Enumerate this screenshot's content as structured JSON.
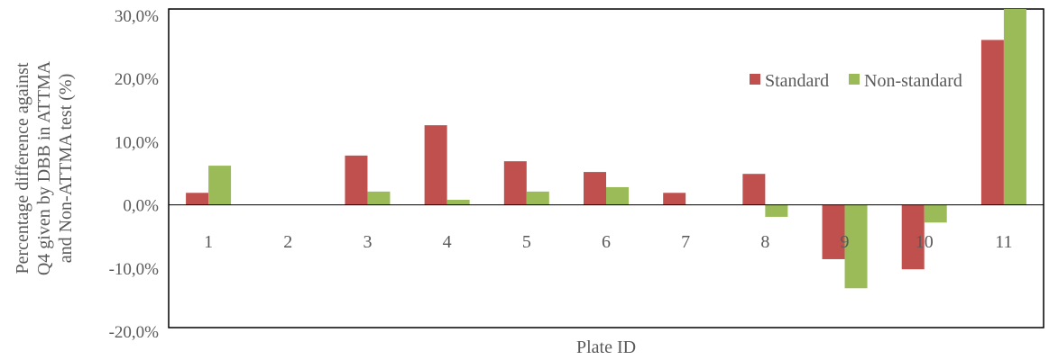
{
  "chart_data": {
    "type": "bar",
    "title": "",
    "xlabel": "Plate ID",
    "ylabel_lines": [
      "Percentage difference against",
      "Q4 given by DBB in ATTMA",
      "and Non-ATTMA test (%)"
    ],
    "categories": [
      "1",
      "2",
      "3",
      "4",
      "5",
      "6",
      "7",
      "8",
      "9",
      "10",
      "11"
    ],
    "ylim": [
      -20,
      30
    ],
    "yticks": [
      -20,
      -10,
      0,
      10,
      20,
      30
    ],
    "ytick_labels": [
      "-20,0%",
      "-10,0%",
      "0,0%",
      "10,0%",
      "20,0%",
      "30,0%"
    ],
    "grid": false,
    "legend_position": "right",
    "series": [
      {
        "name": "Standard",
        "color": "#c0504d",
        "values": [
          1.9,
          0,
          7.8,
          12.6,
          6.9,
          5.2,
          1.9,
          4.9,
          -8.6,
          -10.2,
          26.1
        ]
      },
      {
        "name": "Non-standard",
        "color": "#9bbb59",
        "values": [
          6.2,
          0,
          2.1,
          0.8,
          2.1,
          2.8,
          0,
          -1.9,
          -13.2,
          -2.8,
          31.0
        ]
      }
    ]
  }
}
